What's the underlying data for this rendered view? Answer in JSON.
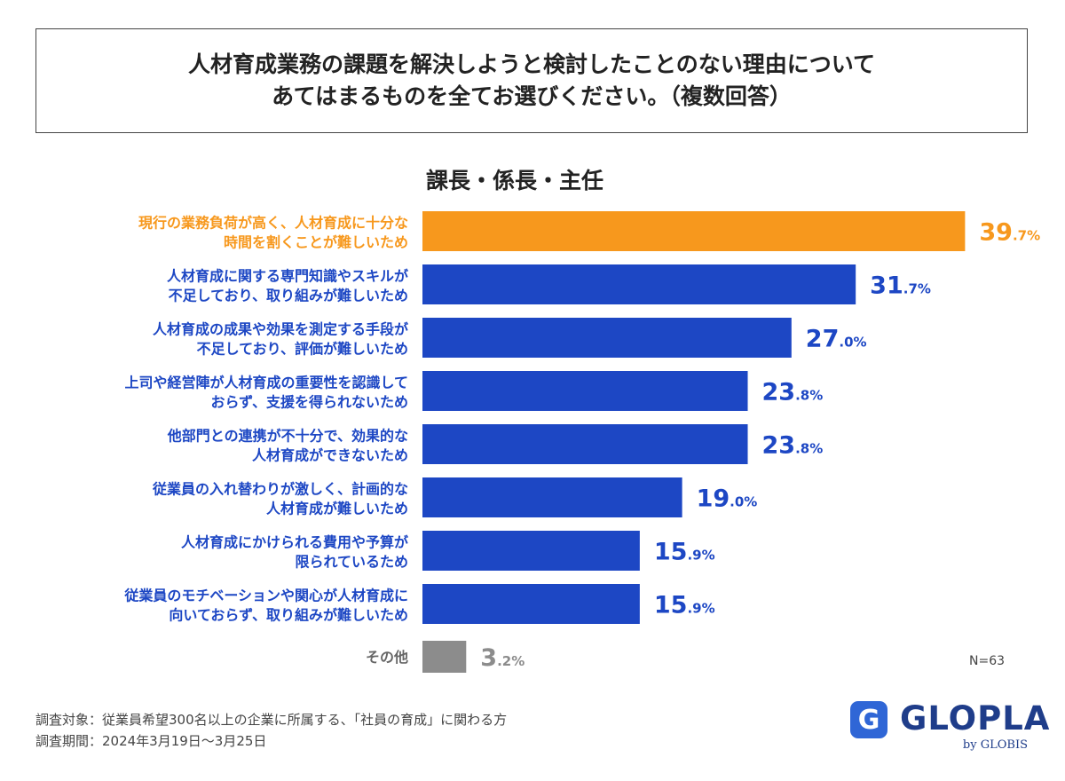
{
  "question": {
    "line1": "人材育成業務の課題を解決しようと検討したことのない理由について",
    "line2": "あてはまるものを全てお選びください。（複数回答）"
  },
  "chart_data": {
    "type": "bar",
    "orientation": "horizontal",
    "title": "課長・係長・主任",
    "categories": [
      [
        "現行の業務負荷が高く、人材育成に十分な",
        "時間を割くことが難しいため"
      ],
      [
        "人材育成に関する専門知識やスキルが",
        "不足しており、取り組みが難しいため"
      ],
      [
        "人材育成の成果や効果を測定する手段が",
        "不足しており、評価が難しいため"
      ],
      [
        "上司や経営陣が人材育成の重要性を認識して",
        "おらず、支援を得られないため"
      ],
      [
        "他部門との連携が不十分で、効果的な",
        "人材育成ができないため"
      ],
      [
        "従業員の入れ替わりが激しく、計画的な",
        "人材育成が難しいため"
      ],
      [
        "人材育成にかけられる費用や予算が",
        "限られているため"
      ],
      [
        "従業員のモチベーションや関心が人材育成に",
        "向いておらず、取り組みが難しいため"
      ],
      [
        "その他"
      ]
    ],
    "values": [
      39.7,
      31.7,
      27.0,
      23.8,
      23.8,
      19.0,
      15.9,
      15.9,
      3.2
    ],
    "value_labels": [
      [
        "39",
        ".7%"
      ],
      [
        "31",
        ".7%"
      ],
      [
        "27",
        ".0%"
      ],
      [
        "23",
        ".8%"
      ],
      [
        "23",
        ".8%"
      ],
      [
        "19",
        ".0%"
      ],
      [
        "15",
        ".9%"
      ],
      [
        "15",
        ".9%"
      ],
      [
        "3",
        ".2%"
      ]
    ],
    "bar_colors": [
      "#f7981d",
      "#1d47c4",
      "#1d47c4",
      "#1d47c4",
      "#1d47c4",
      "#1d47c4",
      "#1d47c4",
      "#1d47c4",
      "#8c8c8c"
    ],
    "category_label_colors": [
      "#f7981d",
      "#1d47c4",
      "#1d47c4",
      "#1d47c4",
      "#1d47c4",
      "#1d47c4",
      "#1d47c4",
      "#1d47c4",
      "#666666"
    ],
    "value_label_colors": [
      "#f7981d",
      "#1d47c4",
      "#1d47c4",
      "#1d47c4",
      "#1d47c4",
      "#1d47c4",
      "#1d47c4",
      "#1d47c4",
      "#8c8c8c"
    ],
    "xlim": [
      0,
      40
    ],
    "xlabel": "",
    "ylabel": "",
    "grid": false,
    "n_label": "N=63"
  },
  "footnotes": {
    "target": "調査対象：従業員希望300名以上の企業に所属する、「社員の育成」に関わる方",
    "period": "調査期間：2024年3月19日〜3月25日"
  },
  "logo": {
    "icon_glyph": "G",
    "name": "GLOPLA",
    "by": "by GLOBIS"
  }
}
